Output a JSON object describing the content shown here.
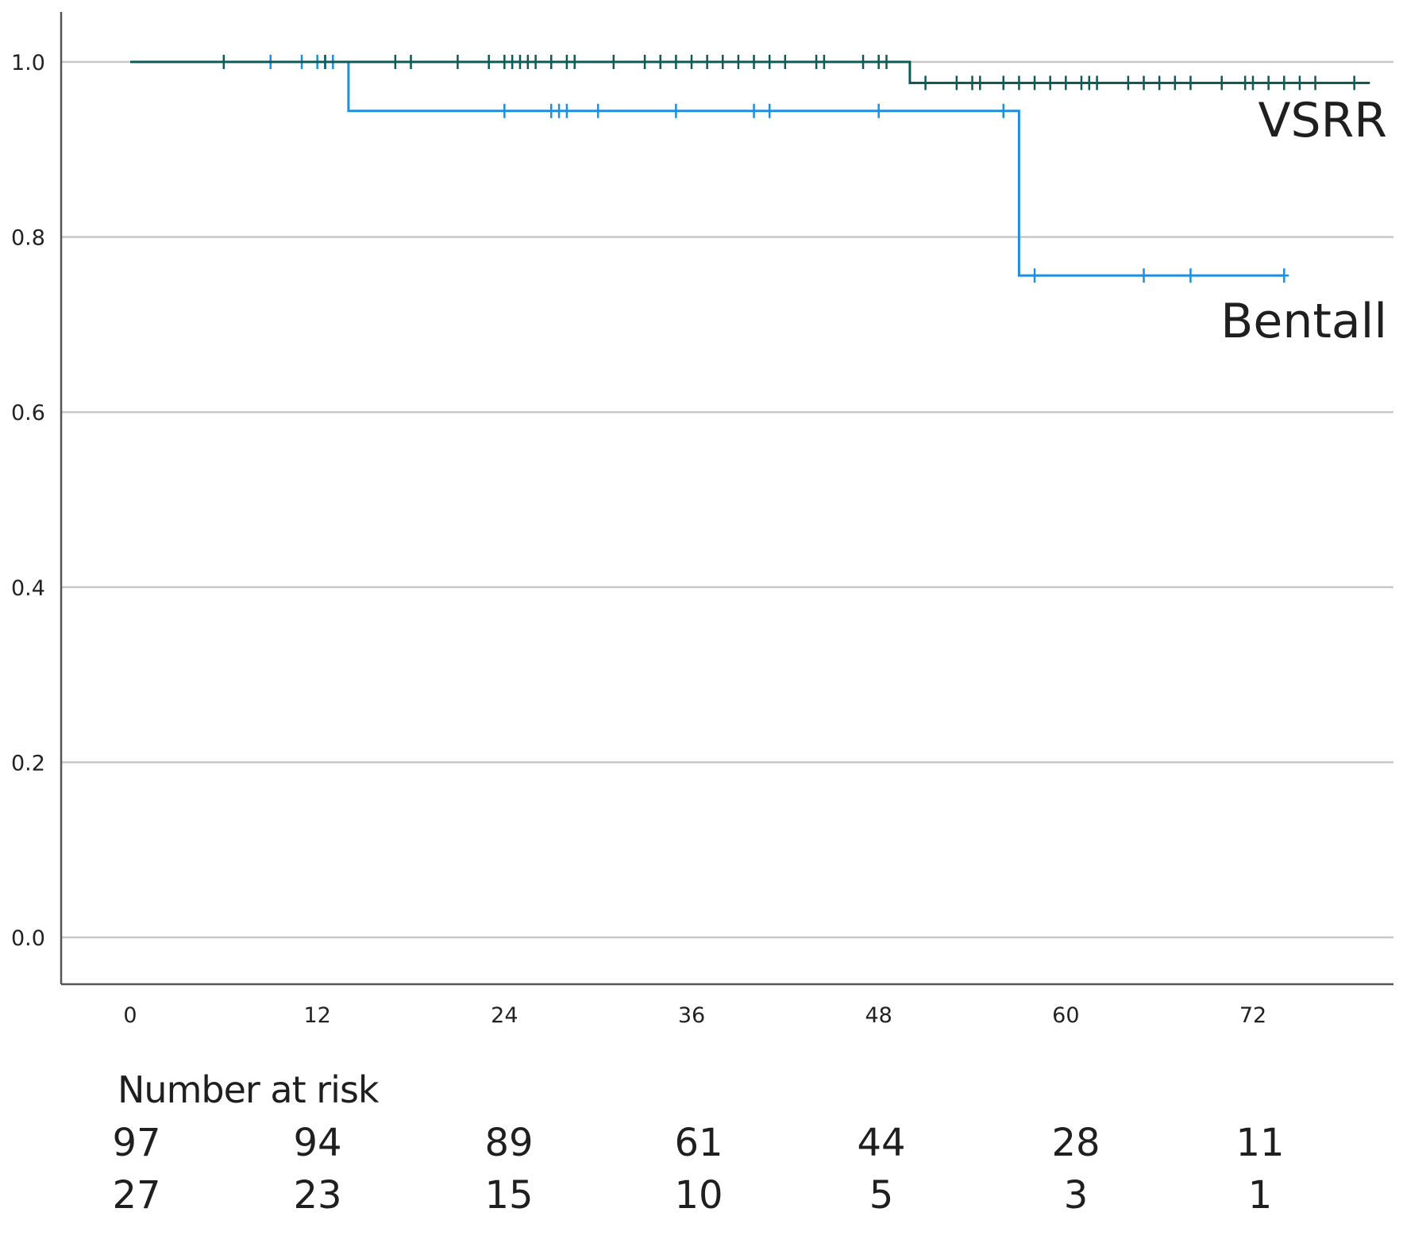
{
  "chart_data": {
    "type": "line",
    "subtype": "kaplan-meier step",
    "title": "",
    "xlabel": "",
    "ylabel": "",
    "xlim": [
      -2.5,
      81
    ],
    "ylim": [
      -0.05,
      1.05
    ],
    "x_ticks": [
      0,
      12,
      24,
      36,
      48,
      60,
      72
    ],
    "y_ticks": [
      0.0,
      0.2,
      0.4,
      0.6,
      0.8,
      1.0
    ],
    "y_tick_labels": [
      "0.0",
      "0.2",
      "0.4",
      "0.6",
      "0.8",
      "1.0"
    ],
    "x_tick_labels": [
      "0",
      "12",
      "24",
      "36",
      "48",
      "60",
      "72"
    ],
    "grid": "horizontal",
    "series": [
      {
        "name": "VSRR",
        "color": "#0e5a55",
        "steps": [
          [
            0,
            1.0
          ],
          [
            50,
            1.0
          ],
          [
            50,
            0.976
          ],
          [
            79.5,
            0.976
          ]
        ],
        "censored": [
          6,
          12.5,
          17,
          18,
          21,
          23,
          24,
          24.5,
          25,
          25.5,
          26,
          27,
          28,
          28.5,
          31,
          33,
          34,
          35,
          36,
          37,
          38,
          39,
          40,
          41,
          42,
          44,
          44.5,
          47,
          48,
          48.5,
          51,
          53,
          54,
          54.5,
          56,
          57,
          58,
          59,
          60,
          61,
          61.5,
          62,
          64,
          65,
          66,
          67,
          68,
          70,
          71.5,
          72,
          73,
          74,
          75,
          76,
          78.5
        ]
      },
      {
        "name": "Bentall",
        "color": "#1e8fde",
        "steps": [
          [
            0,
            1.0
          ],
          [
            14,
            1.0
          ],
          [
            14,
            0.944
          ],
          [
            57,
            0.944
          ],
          [
            57,
            0.756
          ],
          [
            74,
            0.756
          ]
        ],
        "censored": [
          9,
          11,
          12,
          12.5,
          13,
          24,
          27,
          27.5,
          28,
          30,
          35,
          40,
          41,
          48,
          56,
          58,
          65,
          68,
          74
        ]
      }
    ],
    "annotations": [
      {
        "text": "VSRR",
        "x": 79,
        "y": 0.95
      },
      {
        "text": "Bentall",
        "x": 79,
        "y": 0.69
      }
    ],
    "risk_table": {
      "title": "Number at risk",
      "times": [
        0,
        12,
        24,
        36,
        48,
        60,
        72
      ],
      "rows": [
        {
          "values": [
            "97",
            "94",
            "89",
            "61",
            "44",
            "28",
            "11"
          ]
        },
        {
          "values": [
            "27",
            "23",
            "15",
            "10",
            "5",
            "3",
            "1"
          ]
        }
      ]
    }
  }
}
